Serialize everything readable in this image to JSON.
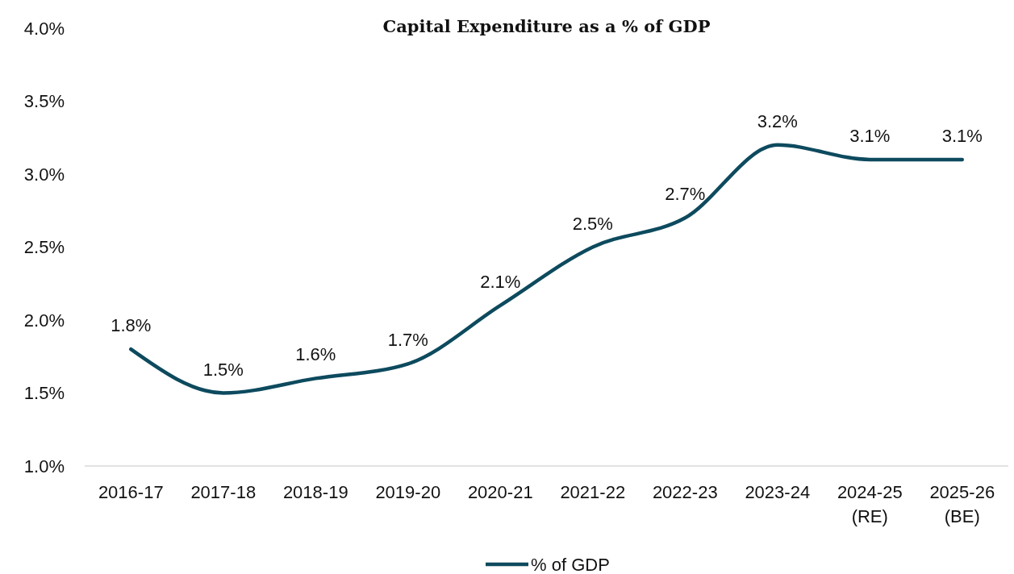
{
  "chart_data": {
    "type": "line",
    "title": "Capital Expenditure as a % of GDP",
    "categories": [
      "2016-17",
      "2017-18",
      "2018-19",
      "2019-20",
      "2020-21",
      "2021-22",
      "2022-23",
      "2023-24",
      "2024-25 (RE)",
      "2025-26 (BE)"
    ],
    "series": [
      {
        "name": "% of GDP",
        "color": "#0d4a5e",
        "values": [
          1.8,
          1.5,
          1.6,
          1.7,
          2.1,
          2.5,
          2.7,
          3.2,
          3.1,
          3.1
        ],
        "value_labels": [
          "1.8%",
          "1.5%",
          "1.6%",
          "1.7%",
          "2.1%",
          "2.5%",
          "2.7%",
          "3.2%",
          "3.1%",
          "3.1%"
        ]
      }
    ],
    "ylim": [
      1.0,
      4.0
    ],
    "yticks": [
      {
        "value": 1.0,
        "label": "1.0%"
      },
      {
        "value": 1.5,
        "label": "1.5%"
      },
      {
        "value": 2.0,
        "label": "2.0%"
      },
      {
        "value": 2.5,
        "label": "2.5%"
      },
      {
        "value": 3.0,
        "label": "3.0%"
      },
      {
        "value": 3.5,
        "label": "3.5%"
      },
      {
        "value": 4.0,
        "label": "4.0%"
      }
    ],
    "grid": false,
    "legend": "bottom",
    "marker": "none",
    "line_style": "solid"
  }
}
